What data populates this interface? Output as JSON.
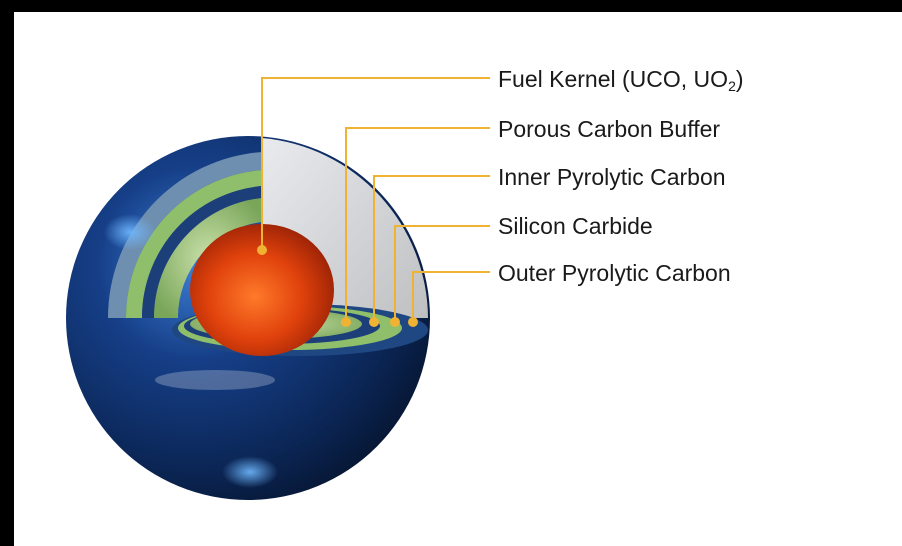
{
  "labels": {
    "fuel_kernel_prefix": "Fuel Kernel (UCO, UO",
    "fuel_kernel_sub": "2",
    "fuel_kernel_suffix": ")",
    "porous_carbon_buffer": "Porous Carbon Buffer",
    "inner_pyrolytic_carbon": "Inner Pyrolytic Carbon",
    "silicon_carbide": "Silicon Carbide",
    "outer_pyrolytic_carbon": "Outer Pyrolytic Carbon"
  },
  "colors": {
    "leader_line": "#f0b233",
    "kernel": "#e04a10",
    "buffer": "#8fbf6a",
    "sphere": "#123a7a",
    "border": "#000000"
  }
}
